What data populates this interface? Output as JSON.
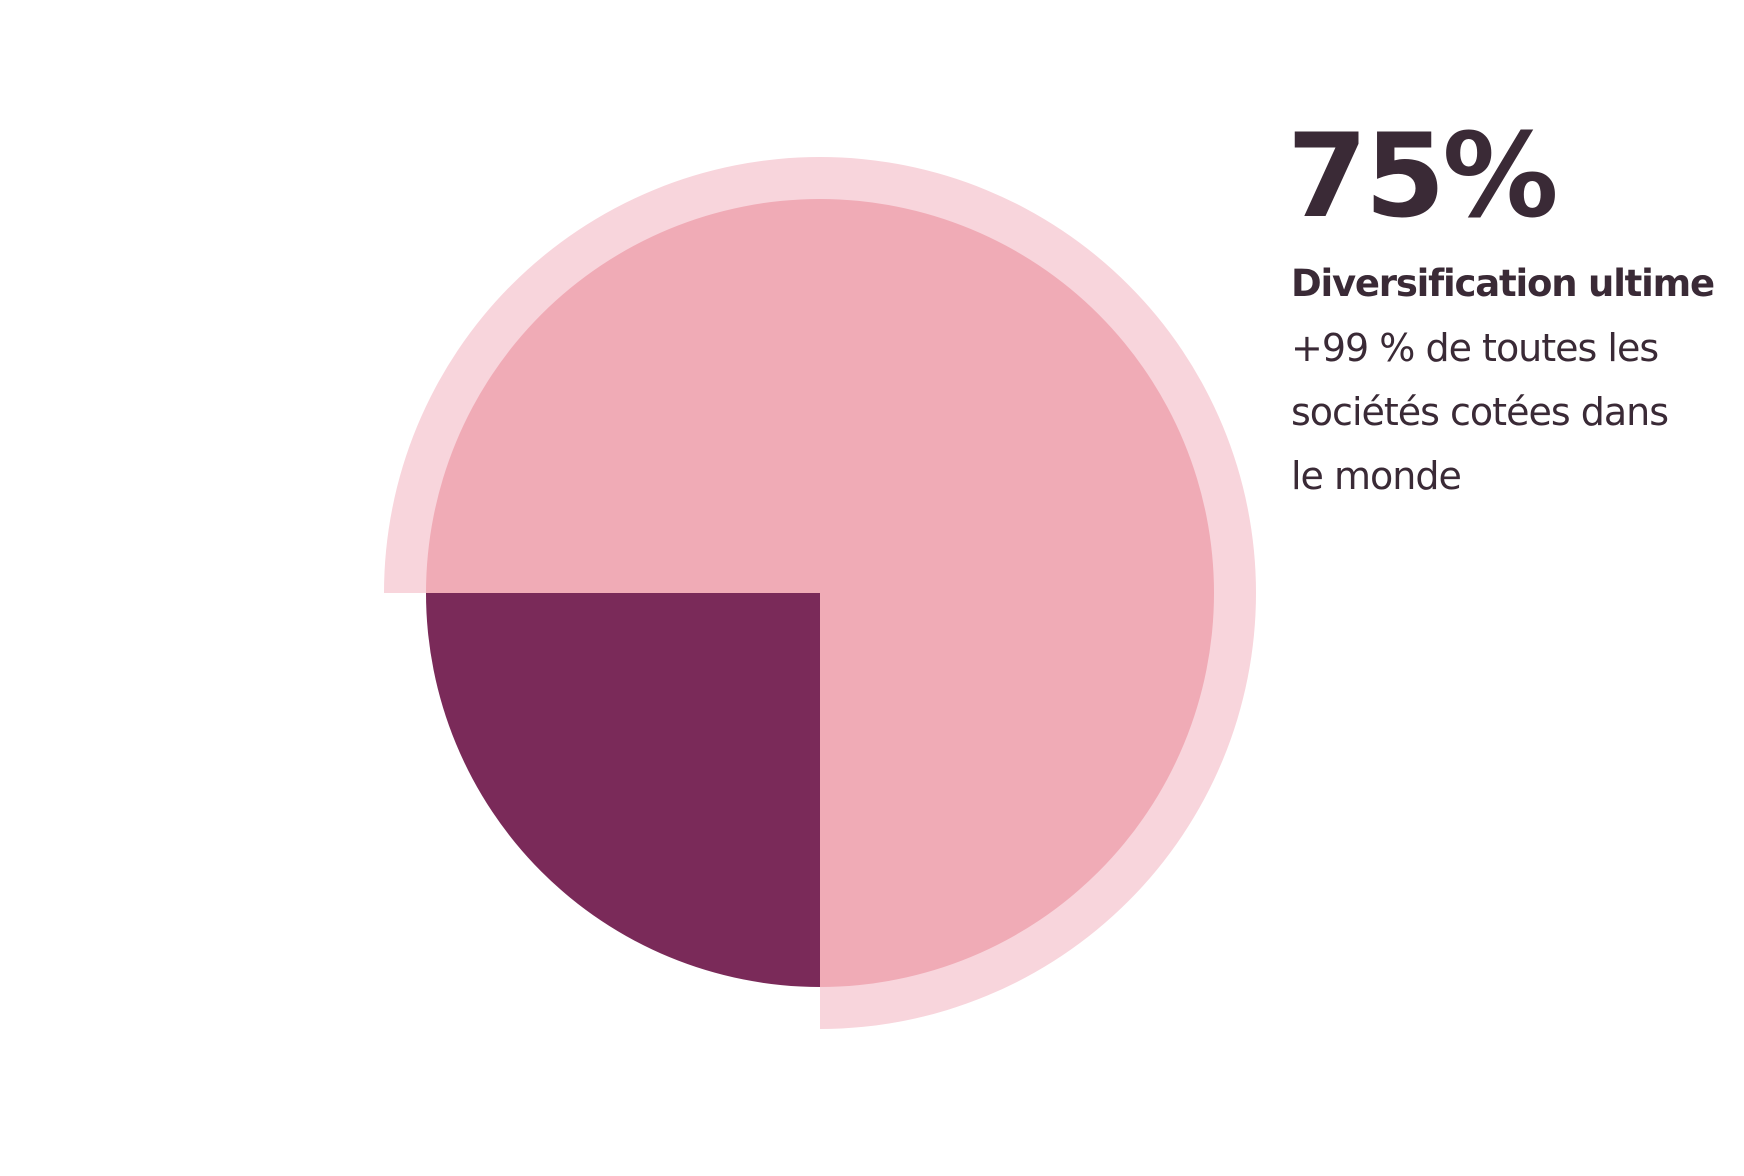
{
  "chart_data": {
    "type": "pie",
    "values": [
      75,
      25
    ],
    "value_labels": [
      "75%",
      null
    ],
    "colors": [
      "#f0abb6",
      "#7a2a59"
    ],
    "highlight_color": "#f8d5dc",
    "highlight": 0,
    "subtitle": "Diversification ultime",
    "annotation": [
      "+99 % de toutes les",
      "sociétés cotées dans",
      "le monde"
    ]
  }
}
